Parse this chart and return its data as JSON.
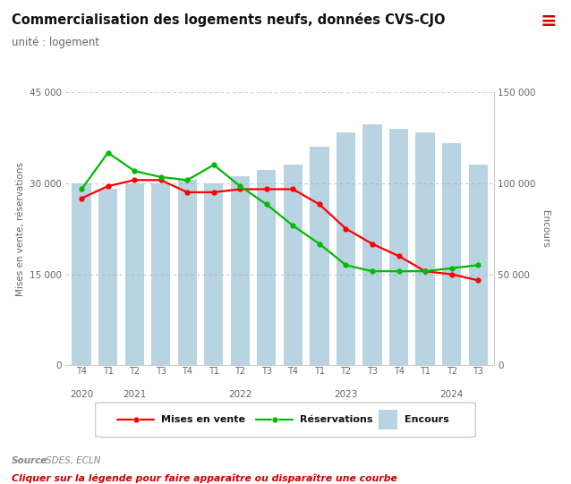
{
  "title": "Commercialisation des logements neufs, données CVS-CJO",
  "subtitle": "unité : logement",
  "source_bold": "Source",
  "source_rest": " : SDES, ECLN",
  "cta": "Cliquer sur la légende pour faire apparaître ou disparaître une courbe",
  "xlabel_quarters": [
    "T4",
    "T1",
    "T2",
    "T3",
    "T4",
    "T1",
    "T2",
    "T3",
    "T4",
    "T1",
    "T2",
    "T3",
    "T4",
    "T1",
    "T2",
    "T3"
  ],
  "year_labels": [
    "2020",
    "2021",
    "2022",
    "2023",
    "2024"
  ],
  "year_centers": [
    0.0,
    2.0,
    6.0,
    10.0,
    14.0
  ],
  "mises_en_vente": [
    27500,
    29500,
    30500,
    30500,
    28500,
    28500,
    29000,
    29000,
    29000,
    26500,
    22500,
    20000,
    18000,
    15500,
    15000,
    14000
  ],
  "reservations": [
    29000,
    35000,
    32000,
    31000,
    30500,
    33000,
    29500,
    26500,
    23000,
    20000,
    16500,
    15500,
    15500,
    15500,
    16000,
    16500
  ],
  "encours": [
    100000,
    97000,
    100000,
    100000,
    102000,
    100000,
    104000,
    107000,
    110000,
    120000,
    128000,
    132000,
    130000,
    128000,
    122000,
    110000
  ],
  "bar_color": "#b8d4e3",
  "line_color_mises": "#FF0000",
  "line_color_reservations": "#00BB00",
  "left_ylim": [
    0,
    45000
  ],
  "right_ylim": [
    0,
    150000
  ],
  "left_yticks": [
    0,
    15000,
    30000,
    45000
  ],
  "right_yticks": [
    0,
    50000,
    100000,
    150000
  ],
  "left_ytick_labels": [
    "0",
    "15 000",
    "30 000",
    "45 000"
  ],
  "right_ytick_labels": [
    "0",
    "50 000",
    "100 000",
    "150 000"
  ],
  "grid_color": "#aaaaaa",
  "background_color": "#FFFFFF",
  "title_fontsize": 10.5,
  "subtitle_fontsize": 8.5,
  "legend_label_mises": "Mises en vente",
  "legend_label_reservations": "Réservations",
  "legend_label_encours": "Encours",
  "ylabel_left": "Mises en vente, réservations",
  "ylabel_right": "Encours",
  "hamburger_color": "#CC0000"
}
